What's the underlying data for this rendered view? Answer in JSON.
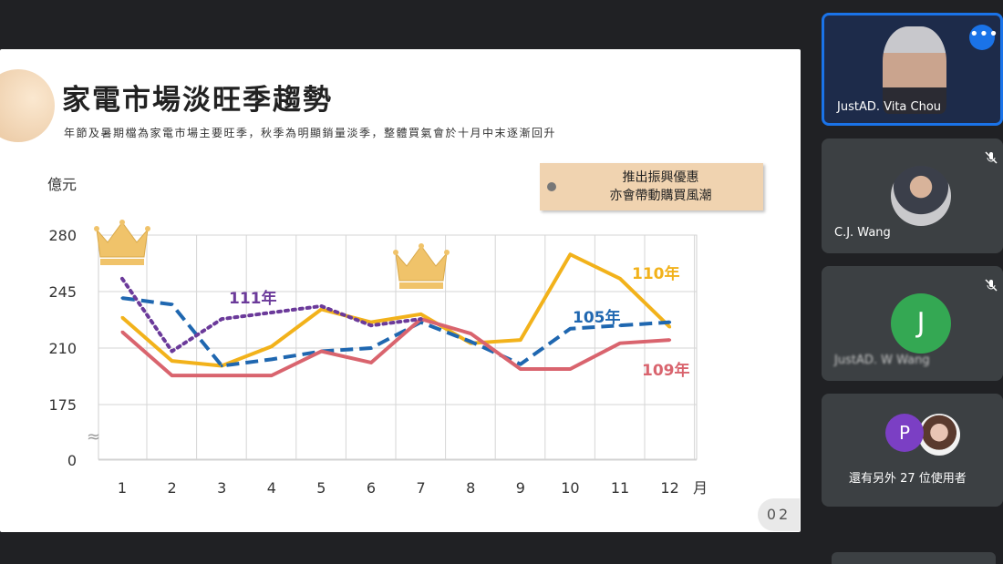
{
  "slide": {
    "title": "家電市場淡旺季趨勢",
    "subtitle": "年節及暑期檔為家電市場主要旺季，秋季為明顯銷量淡季，整體買氣會於十月中末逐漸回升",
    "promo_line1": "推出振興優惠",
    "promo_line2": "亦會帶動購買風潮",
    "page_number": "02"
  },
  "chart_data": {
    "type": "line",
    "ylabel": "億元",
    "xlabel": "月",
    "categories": [
      "1",
      "2",
      "3",
      "4",
      "5",
      "6",
      "7",
      "8",
      "9",
      "10",
      "11",
      "12"
    ],
    "y_ticks": [
      "280",
      "245",
      "210",
      "175",
      "0"
    ],
    "axis_break": "≈",
    "series": [
      {
        "name": "110年",
        "color": "#f2b21b",
        "style": "solid",
        "values": [
          229,
          202,
          199,
          211,
          234,
          226,
          231,
          213,
          215,
          268,
          253,
          223
        ]
      },
      {
        "name": "105年",
        "color": "#1f67b0",
        "style": "dashed",
        "values": [
          241,
          237,
          199,
          203,
          208,
          210,
          226,
          214,
          200,
          222,
          224,
          226
        ]
      },
      {
        "name": "109年",
        "color": "#d9646e",
        "style": "solid",
        "values": [
          220,
          193,
          193,
          193,
          208,
          201,
          228,
          219,
          197,
          197,
          213,
          215
        ]
      },
      {
        "name": "111年",
        "color": "#6b3a9a",
        "style": "dotted",
        "values": [
          253,
          208,
          228,
          232,
          236,
          224,
          228,
          null,
          null,
          null,
          null,
          null
        ]
      }
    ]
  },
  "participants": [
    {
      "name": "JustAD. Vita Chou",
      "active": true
    },
    {
      "name": "C.J. Wang",
      "muted": true
    },
    {
      "name": "JustAD. W Wang",
      "initial": "J",
      "muted": true
    },
    {
      "name": "還有另外 27 位使用者",
      "initial": "P"
    }
  ],
  "more_options_icon": "more-vert-icon"
}
